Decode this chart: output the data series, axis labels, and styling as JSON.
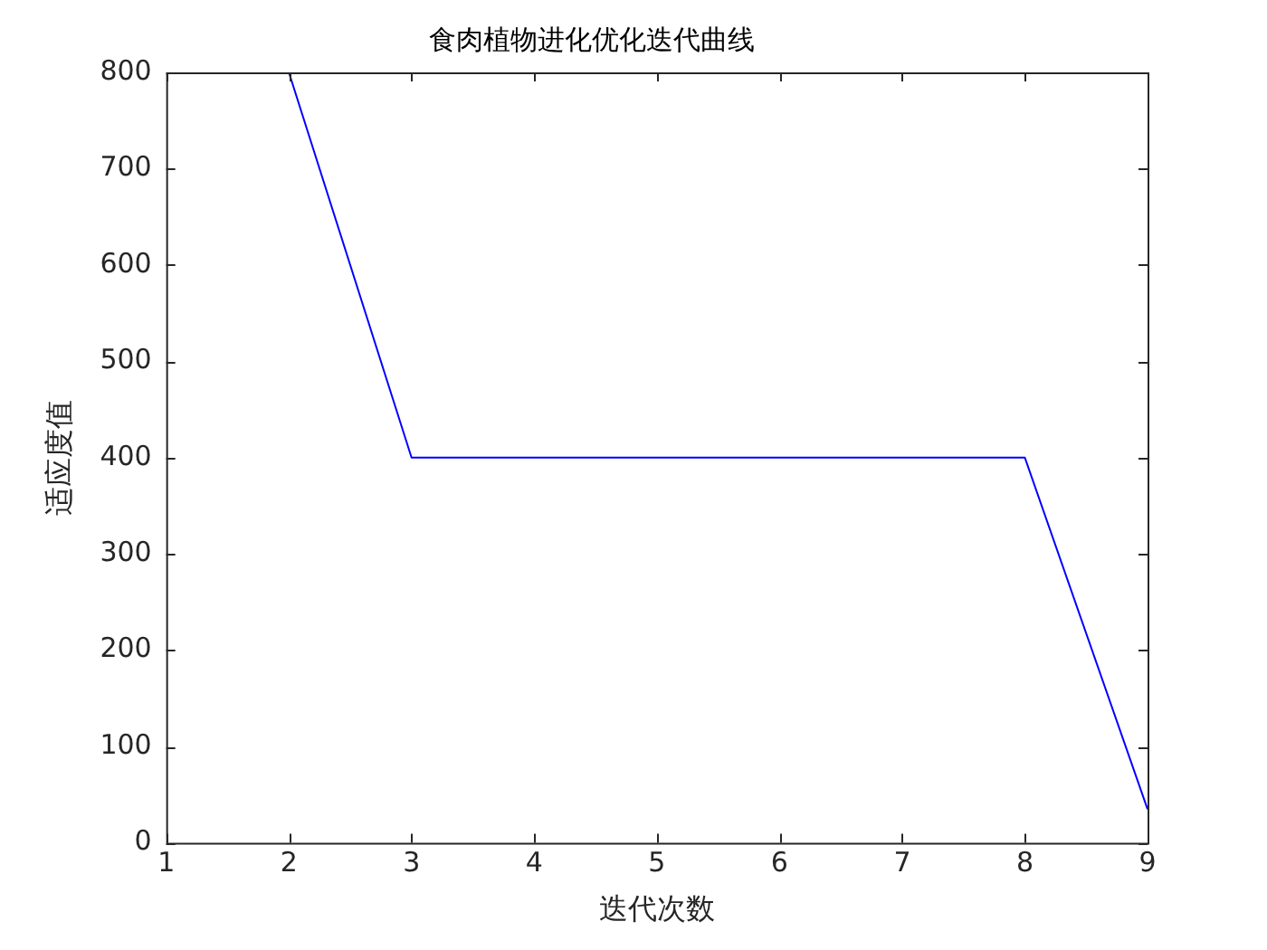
{
  "chart_data": {
    "type": "line",
    "title": "食肉植物进化优化迭代曲线",
    "xlabel": "迭代次数",
    "ylabel": "适应度值",
    "x": [
      2,
      3,
      4,
      5,
      6,
      7,
      8,
      9
    ],
    "series": [
      {
        "color": "#0000ff",
        "values": [
          800,
          400,
          400,
          400,
          400,
          400,
          400,
          35
        ]
      }
    ],
    "xlim": [
      1,
      9
    ],
    "xticks": [
      1,
      2,
      3,
      4,
      5,
      6,
      7,
      8,
      9
    ],
    "ylim": [
      0,
      800
    ],
    "yticks": [
      0,
      100,
      200,
      300,
      400,
      500,
      600,
      700,
      800
    ],
    "grid": false,
    "legend": false,
    "marker": "none",
    "line_style": "solid"
  }
}
